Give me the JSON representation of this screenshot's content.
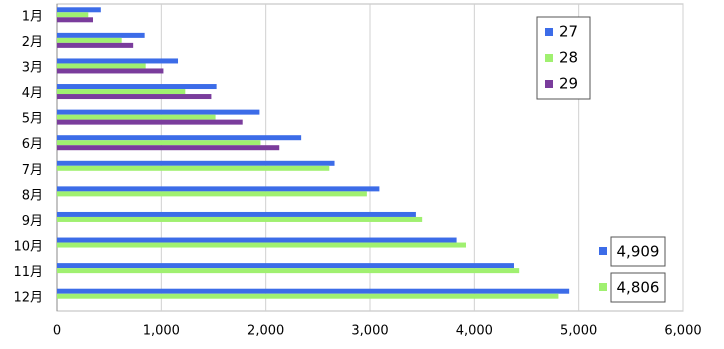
{
  "chart_data": {
    "type": "hbar",
    "categories": [
      "1月",
      "2月",
      "3月",
      "4月",
      "5月",
      "6月",
      "7月",
      "8月",
      "9月",
      "10月",
      "11月",
      "12月"
    ],
    "series": [
      {
        "name": "27",
        "color": "#3c6ce8",
        "values": [
          420,
          840,
          1160,
          1530,
          1940,
          2340,
          2660,
          3090,
          3440,
          3830,
          4380,
          4909
        ],
        "value_labels": [
          null,
          null,
          null,
          null,
          null,
          null,
          null,
          null,
          null,
          null,
          null,
          "4,909"
        ]
      },
      {
        "name": "28",
        "color": "#a0f070",
        "values": [
          300,
          620,
          850,
          1230,
          1520,
          1950,
          2610,
          2970,
          3500,
          3920,
          4430,
          4806
        ],
        "value_labels": [
          null,
          null,
          null,
          null,
          null,
          null,
          null,
          null,
          null,
          null,
          null,
          "4,806"
        ]
      },
      {
        "name": "29",
        "color": "#7a3c9c",
        "values": [
          345,
          730,
          1020,
          1480,
          1780,
          2130,
          null,
          null,
          null,
          null,
          null,
          null
        ]
      }
    ],
    "xlim": [
      0,
      6000
    ],
    "xticks": [
      0,
      {
        "value": 1000,
        "label": "1,000"
      },
      {
        "value": 2000,
        "label": "2,000"
      },
      {
        "value": 3000,
        "label": "3,000"
      },
      {
        "value": 4000,
        "label": "4,000"
      },
      {
        "value": 5000,
        "label": "5,000"
      },
      {
        "value": 6000,
        "label": "6,000"
      }
    ],
    "grid": true
  }
}
